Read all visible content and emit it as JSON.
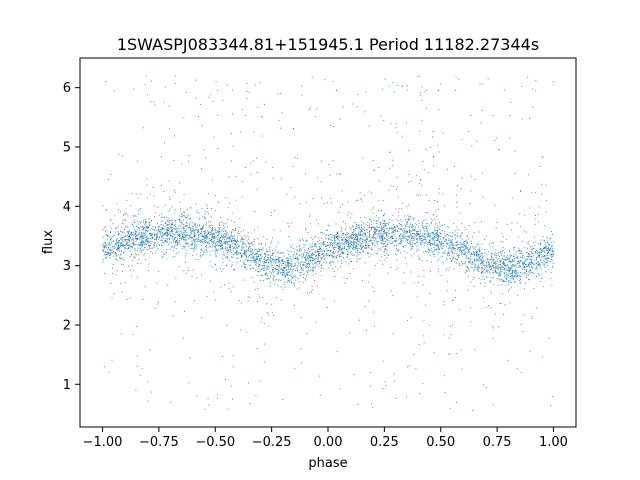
{
  "chart_data": {
    "type": "scatter",
    "title": "1SWASPJ083344.81+151945.1 Period 11182.27344s",
    "xlabel": "phase",
    "ylabel": "flux",
    "xlim": [
      -1.1,
      1.1
    ],
    "ylim": [
      0.28,
      6.5
    ],
    "x_ticks": [
      -1.0,
      -0.75,
      -0.5,
      -0.25,
      0.0,
      0.25,
      0.5,
      0.75,
      1.0
    ],
    "x_tick_labels": [
      "−1.00",
      "−0.75",
      "−0.50",
      "−0.25",
      "0.00",
      "0.25",
      "0.50",
      "0.75",
      "1.00"
    ],
    "y_ticks": [
      1,
      2,
      3,
      4,
      5,
      6
    ],
    "y_tick_labels": [
      "1",
      "2",
      "3",
      "4",
      "5",
      "6"
    ],
    "grid": false,
    "marker_color": "#1f77b4",
    "series": [
      {
        "phase_range": [
          -1.0,
          1.0
        ],
        "profile_phase": [
          -1.0,
          -0.9,
          -0.8,
          -0.7,
          -0.6,
          -0.5,
          -0.4,
          -0.3,
          -0.2,
          -0.1,
          0.0,
          0.1,
          0.2,
          0.3,
          0.4,
          0.5,
          0.6,
          0.7,
          0.8,
          0.9,
          1.0
        ],
        "profile_flux": [
          3.28,
          3.4,
          3.5,
          3.55,
          3.52,
          3.45,
          3.3,
          3.08,
          2.98,
          3.05,
          3.28,
          3.42,
          3.52,
          3.55,
          3.5,
          3.4,
          3.25,
          3.05,
          2.98,
          3.05,
          3.28
        ]
      }
    ]
  }
}
